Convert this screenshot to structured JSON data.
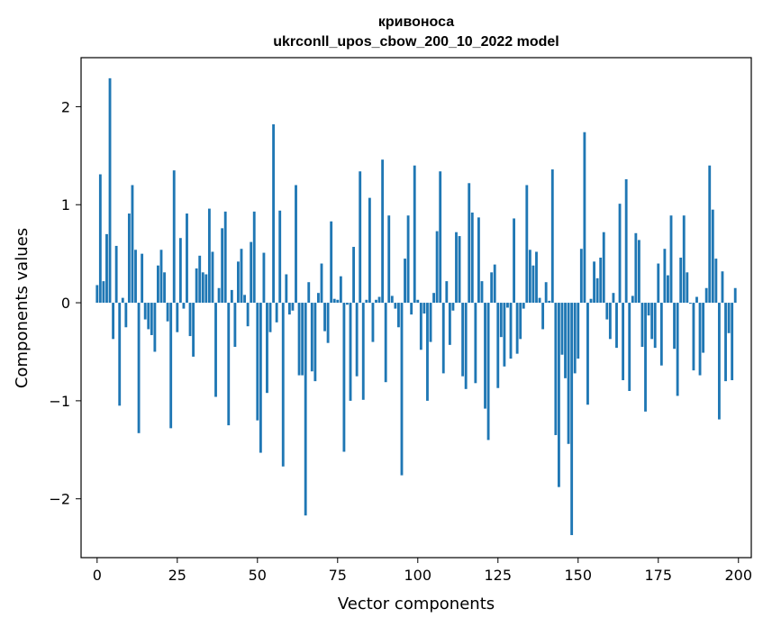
{
  "chart_data": {
    "type": "bar",
    "title": "кривоноса",
    "subtitle": "ukrconll_upos_cbow_200_10_2022 model",
    "xlabel": "Vector components",
    "ylabel": "Components values",
    "xlim": [
      -5,
      204
    ],
    "ylim": [
      -2.6,
      2.5
    ],
    "x_ticks": [
      0,
      25,
      50,
      75,
      100,
      125,
      150,
      175,
      200
    ],
    "x_tick_labels": [
      "0",
      "25",
      "50",
      "75",
      "100",
      "125",
      "150",
      "175",
      "200"
    ],
    "y_ticks": [
      -2,
      -1,
      0,
      1,
      2
    ],
    "y_tick_labels": [
      "−2",
      "−1",
      "0",
      "1",
      "2"
    ],
    "bar_color": "#1f77b4",
    "grid": false,
    "legend": "none",
    "x": [
      0,
      1,
      2,
      3,
      4,
      5,
      6,
      7,
      8,
      9,
      10,
      11,
      12,
      13,
      14,
      15,
      16,
      17,
      18,
      19,
      20,
      21,
      22,
      23,
      24,
      25,
      26,
      27,
      28,
      29,
      30,
      31,
      32,
      33,
      34,
      35,
      36,
      37,
      38,
      39,
      40,
      41,
      42,
      43,
      44,
      45,
      46,
      47,
      48,
      49,
      50,
      51,
      52,
      53,
      54,
      55,
      56,
      57,
      58,
      59,
      60,
      61,
      62,
      63,
      64,
      65,
      66,
      67,
      68,
      69,
      70,
      71,
      72,
      73,
      74,
      75,
      76,
      77,
      78,
      79,
      80,
      81,
      82,
      83,
      84,
      85,
      86,
      87,
      88,
      89,
      90,
      91,
      92,
      93,
      94,
      95,
      96,
      97,
      98,
      99,
      100,
      101,
      102,
      103,
      104,
      105,
      106,
      107,
      108,
      109,
      110,
      111,
      112,
      113,
      114,
      115,
      116,
      117,
      118,
      119,
      120,
      121,
      122,
      123,
      124,
      125,
      126,
      127,
      128,
      129,
      130,
      131,
      132,
      133,
      134,
      135,
      136,
      137,
      138,
      139,
      140,
      141,
      142,
      143,
      144,
      145,
      146,
      147,
      148,
      149,
      150,
      151,
      152,
      153,
      154,
      155,
      156,
      157,
      158,
      159,
      160,
      161,
      162,
      163,
      164,
      165,
      166,
      167,
      168,
      169,
      170,
      171,
      172,
      173,
      174,
      175,
      176,
      177,
      178,
      179,
      180,
      181,
      182,
      183,
      184,
      185,
      186,
      187,
      188,
      189,
      190,
      191,
      192,
      193,
      194,
      195,
      196,
      197,
      198,
      199
    ],
    "values": [
      0.18,
      1.31,
      0.22,
      0.7,
      2.29,
      -0.37,
      0.58,
      -1.05,
      0.05,
      -0.25,
      0.91,
      1.2,
      0.54,
      -1.33,
      0.5,
      -0.17,
      -0.27,
      -0.33,
      -0.5,
      0.38,
      0.54,
      0.31,
      -0.19,
      -1.28,
      1.35,
      -0.3,
      0.66,
      -0.06,
      0.91,
      -0.34,
      -0.55,
      0.35,
      0.48,
      0.31,
      0.29,
      0.96,
      0.52,
      -0.96,
      0.15,
      0.76,
      0.93,
      -1.25,
      0.13,
      -0.45,
      0.42,
      0.55,
      0.08,
      -0.24,
      0.62,
      0.93,
      -1.2,
      -1.53,
      0.51,
      -0.92,
      -0.3,
      1.82,
      -0.2,
      0.94,
      -1.67,
      0.29,
      -0.12,
      -0.08,
      1.2,
      -0.74,
      -0.74,
      -2.17,
      0.21,
      -0.7,
      -0.8,
      0.1,
      0.4,
      -0.29,
      -0.41,
      0.83,
      0.04,
      0.03,
      0.27,
      -1.52,
      -0.02,
      -1.0,
      0.57,
      -0.75,
      1.34,
      -0.99,
      0.03,
      1.07,
      -0.4,
      0.03,
      0.06,
      1.46,
      -0.81,
      0.89,
      0.07,
      -0.06,
      -0.25,
      -1.76,
      0.45,
      0.89,
      -0.12,
      1.4,
      0.03,
      -0.48,
      -0.11,
      -1.0,
      -0.4,
      0.1,
      0.73,
      1.34,
      -0.72,
      0.22,
      -0.43,
      -0.08,
      0.72,
      0.68,
      -0.75,
      -0.88,
      1.22,
      0.92,
      -0.82,
      0.87,
      0.22,
      -1.08,
      -1.4,
      0.31,
      0.39,
      -0.87,
      -0.35,
      -0.65,
      -0.05,
      -0.57,
      0.86,
      -0.52,
      -0.37,
      -0.06,
      1.2,
      0.54,
      0.38,
      0.52,
      0.05,
      -0.27,
      0.21,
      0.02,
      1.36,
      -1.35,
      -1.88,
      -0.53,
      -0.77,
      -1.44,
      -2.37,
      -0.72,
      -0.57,
      0.55,
      1.74,
      -1.04,
      0.04,
      0.42,
      0.25,
      0.46,
      0.72,
      -0.17,
      -0.37,
      0.1,
      -0.46,
      1.01,
      -0.79,
      1.26,
      -0.9,
      0.07,
      0.71,
      0.64,
      -0.45,
      -1.11,
      -0.13,
      -0.37,
      -0.46,
      0.4,
      -0.64,
      0.55,
      0.28,
      0.89,
      -0.47,
      -0.95,
      0.46,
      0.89,
      0.31,
      -0.01,
      -0.69,
      0.06,
      -0.74,
      -0.51,
      0.15,
      1.4,
      0.95,
      0.45,
      -1.19,
      0.32,
      -0.8,
      -0.31,
      -0.79,
      0.15
    ]
  }
}
